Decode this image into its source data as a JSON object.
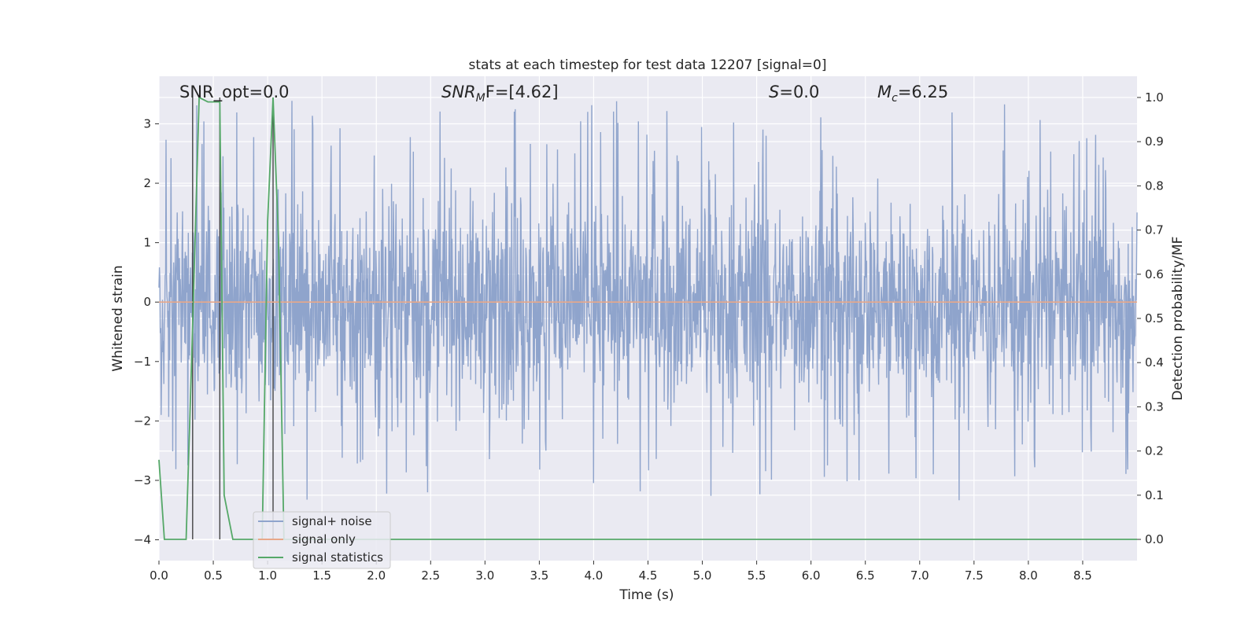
{
  "chart_data": {
    "type": "line",
    "title": "stats at each timestep for test data 12207 [signal=0]",
    "xlabel": "Time (s)",
    "ylabel": "Whitened strain",
    "y2label": "Detection probability/MF",
    "xlim": [
      0.0,
      9.0
    ],
    "ylim": [
      -4.35,
      3.8
    ],
    "y2lim": [
      -0.048,
      1.048
    ],
    "x_ticks": [
      "0.0",
      "0.5",
      "1.0",
      "1.5",
      "2.0",
      "2.5",
      "3.0",
      "3.5",
      "4.0",
      "4.5",
      "5.0",
      "5.5",
      "6.0",
      "6.5",
      "7.0",
      "7.5",
      "8.0",
      "8.5"
    ],
    "y_ticks": [
      "−4",
      "−3",
      "−2",
      "−1",
      "0",
      "1",
      "2",
      "3"
    ],
    "y2_ticks": [
      "0.0",
      "0.1",
      "0.2",
      "0.3",
      "0.4",
      "0.5",
      "0.6",
      "0.7",
      "0.8",
      "0.9",
      "1.0"
    ],
    "grid": true,
    "legend_position": "lower-left",
    "annotations": {
      "snr_opt": "SNR_opt=0.0",
      "snr_mf_base": "SNR",
      "snr_mf_sub": "M",
      "snr_mf_rest": "F=[4.62]",
      "s_base": "S",
      "s_rest": "=0.0",
      "mc_base": "M",
      "mc_sub": "c",
      "mc_rest": "=6.25"
    },
    "noise": {
      "base_amplitude": 1.2,
      "spike_max": 3.4,
      "spike_min": -4.0,
      "samples": 2200
    },
    "vertical_markers_x": [
      0.31,
      0.56,
      1.05
    ],
    "series": [
      {
        "name": "signal+ noise",
        "color": "#8fa4cc",
        "x": [],
        "y": []
      },
      {
        "name": "signal only",
        "color": "#e8a88a",
        "x": [
          0.0,
          9.0
        ],
        "y": [
          0.0,
          0.0
        ]
      },
      {
        "name": "signal statistics",
        "color": "#55a868",
        "axis": "right",
        "x": [
          0.0,
          0.05,
          0.1,
          0.25,
          0.3,
          0.37,
          0.45,
          0.56,
          0.6,
          0.68,
          0.9,
          0.95,
          1.0,
          1.05,
          1.1,
          1.15,
          1.2,
          9.0
        ],
        "y": [
          0.18,
          0.0,
          0.0,
          0.0,
          0.4,
          1.0,
          0.99,
          0.99,
          0.1,
          0.0,
          0.0,
          0.0,
          0.72,
          1.0,
          0.68,
          0.0,
          0.0,
          0.0
        ]
      }
    ]
  }
}
